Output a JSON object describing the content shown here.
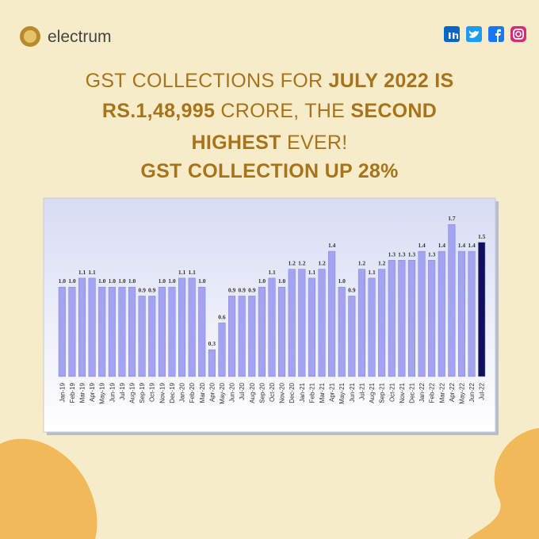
{
  "brand": "electrum",
  "headline": [
    [
      {
        "text": "GST COLLECTIONS FOR ",
        "bold": false
      },
      {
        "text": "JULY 2022 IS",
        "bold": true
      }
    ],
    [
      {
        "text": "RS.1,48,995",
        "bold": true
      },
      {
        "text": " CRORE, THE ",
        "bold": false
      },
      {
        "text": "SECOND",
        "bold": true
      }
    ],
    [
      {
        "text": "HIGHEST",
        "bold": true
      },
      {
        "text": " EVER!",
        "bold": false
      }
    ],
    [
      {
        "text": "GST COLLECTION UP 28%",
        "bold": true
      }
    ]
  ],
  "chart_data": {
    "type": "bar",
    "categories": [
      "Jan-19",
      "Feb-19",
      "Mar-19",
      "Apr-19",
      "May-19",
      "Jun-19",
      "Jul-19",
      "Aug-19",
      "Sep-19",
      "Oct-19",
      "Nov-19",
      "Dec-19",
      "Jan-20",
      "Feb-20",
      "Mar-20",
      "Apr-20",
      "May-20",
      "Jun-20",
      "Jul-20",
      "Aug-20",
      "Sep-20",
      "Oct-20",
      "Nov-20",
      "Dec-20",
      "Jan-21",
      "Feb-21",
      "Mar-21",
      "Apr-21",
      "May-21",
      "Jun-21",
      "Jul-21",
      "Aug-21",
      "Sep-21",
      "Oct-21",
      "Nov-21",
      "Dec-21",
      "Jan-22",
      "Feb-22",
      "Mar-22",
      "Apr-22",
      "May-22",
      "Jun-22",
      "Jul-22"
    ],
    "values": [
      1.0,
      1.0,
      1.1,
      1.1,
      1.0,
      1.0,
      1.0,
      1.0,
      0.9,
      0.9,
      1.0,
      1.0,
      1.1,
      1.1,
      1.0,
      0.3,
      0.6,
      0.9,
      0.9,
      0.9,
      1.0,
      1.1,
      1.0,
      1.2,
      1.2,
      1.1,
      1.2,
      1.4,
      1.0,
      0.9,
      1.2,
      1.1,
      1.2,
      1.3,
      1.3,
      1.3,
      1.4,
      1.3,
      1.4,
      1.7,
      1.4,
      1.4,
      1.5
    ],
    "value_labels": [
      "1.0",
      "1.0",
      "1.1",
      "1.1",
      "1.0",
      "1.0",
      "1.0",
      "1.0",
      "0.9",
      "0.9",
      "1.0",
      "1.0",
      "1.1",
      "1.1",
      "1.0",
      "0.3",
      "0.6",
      "0.9",
      "0.9",
      "0.9",
      "1.0",
      "1.1",
      "1.0",
      "1.2",
      "1.2",
      "1.1",
      "1.2",
      "1.4",
      "1.0",
      "0.9",
      "1.2",
      "1.1",
      "1.2",
      "1.3",
      "1.3",
      "1.3",
      "1.4",
      "1.3",
      "1.4",
      "1.7",
      "1.4",
      "1.4",
      "1.5"
    ],
    "color": "#a3a3f2",
    "highlight_color": "#0f0f5c",
    "highlight_index": 42,
    "ylim": [
      0,
      1.95
    ]
  }
}
